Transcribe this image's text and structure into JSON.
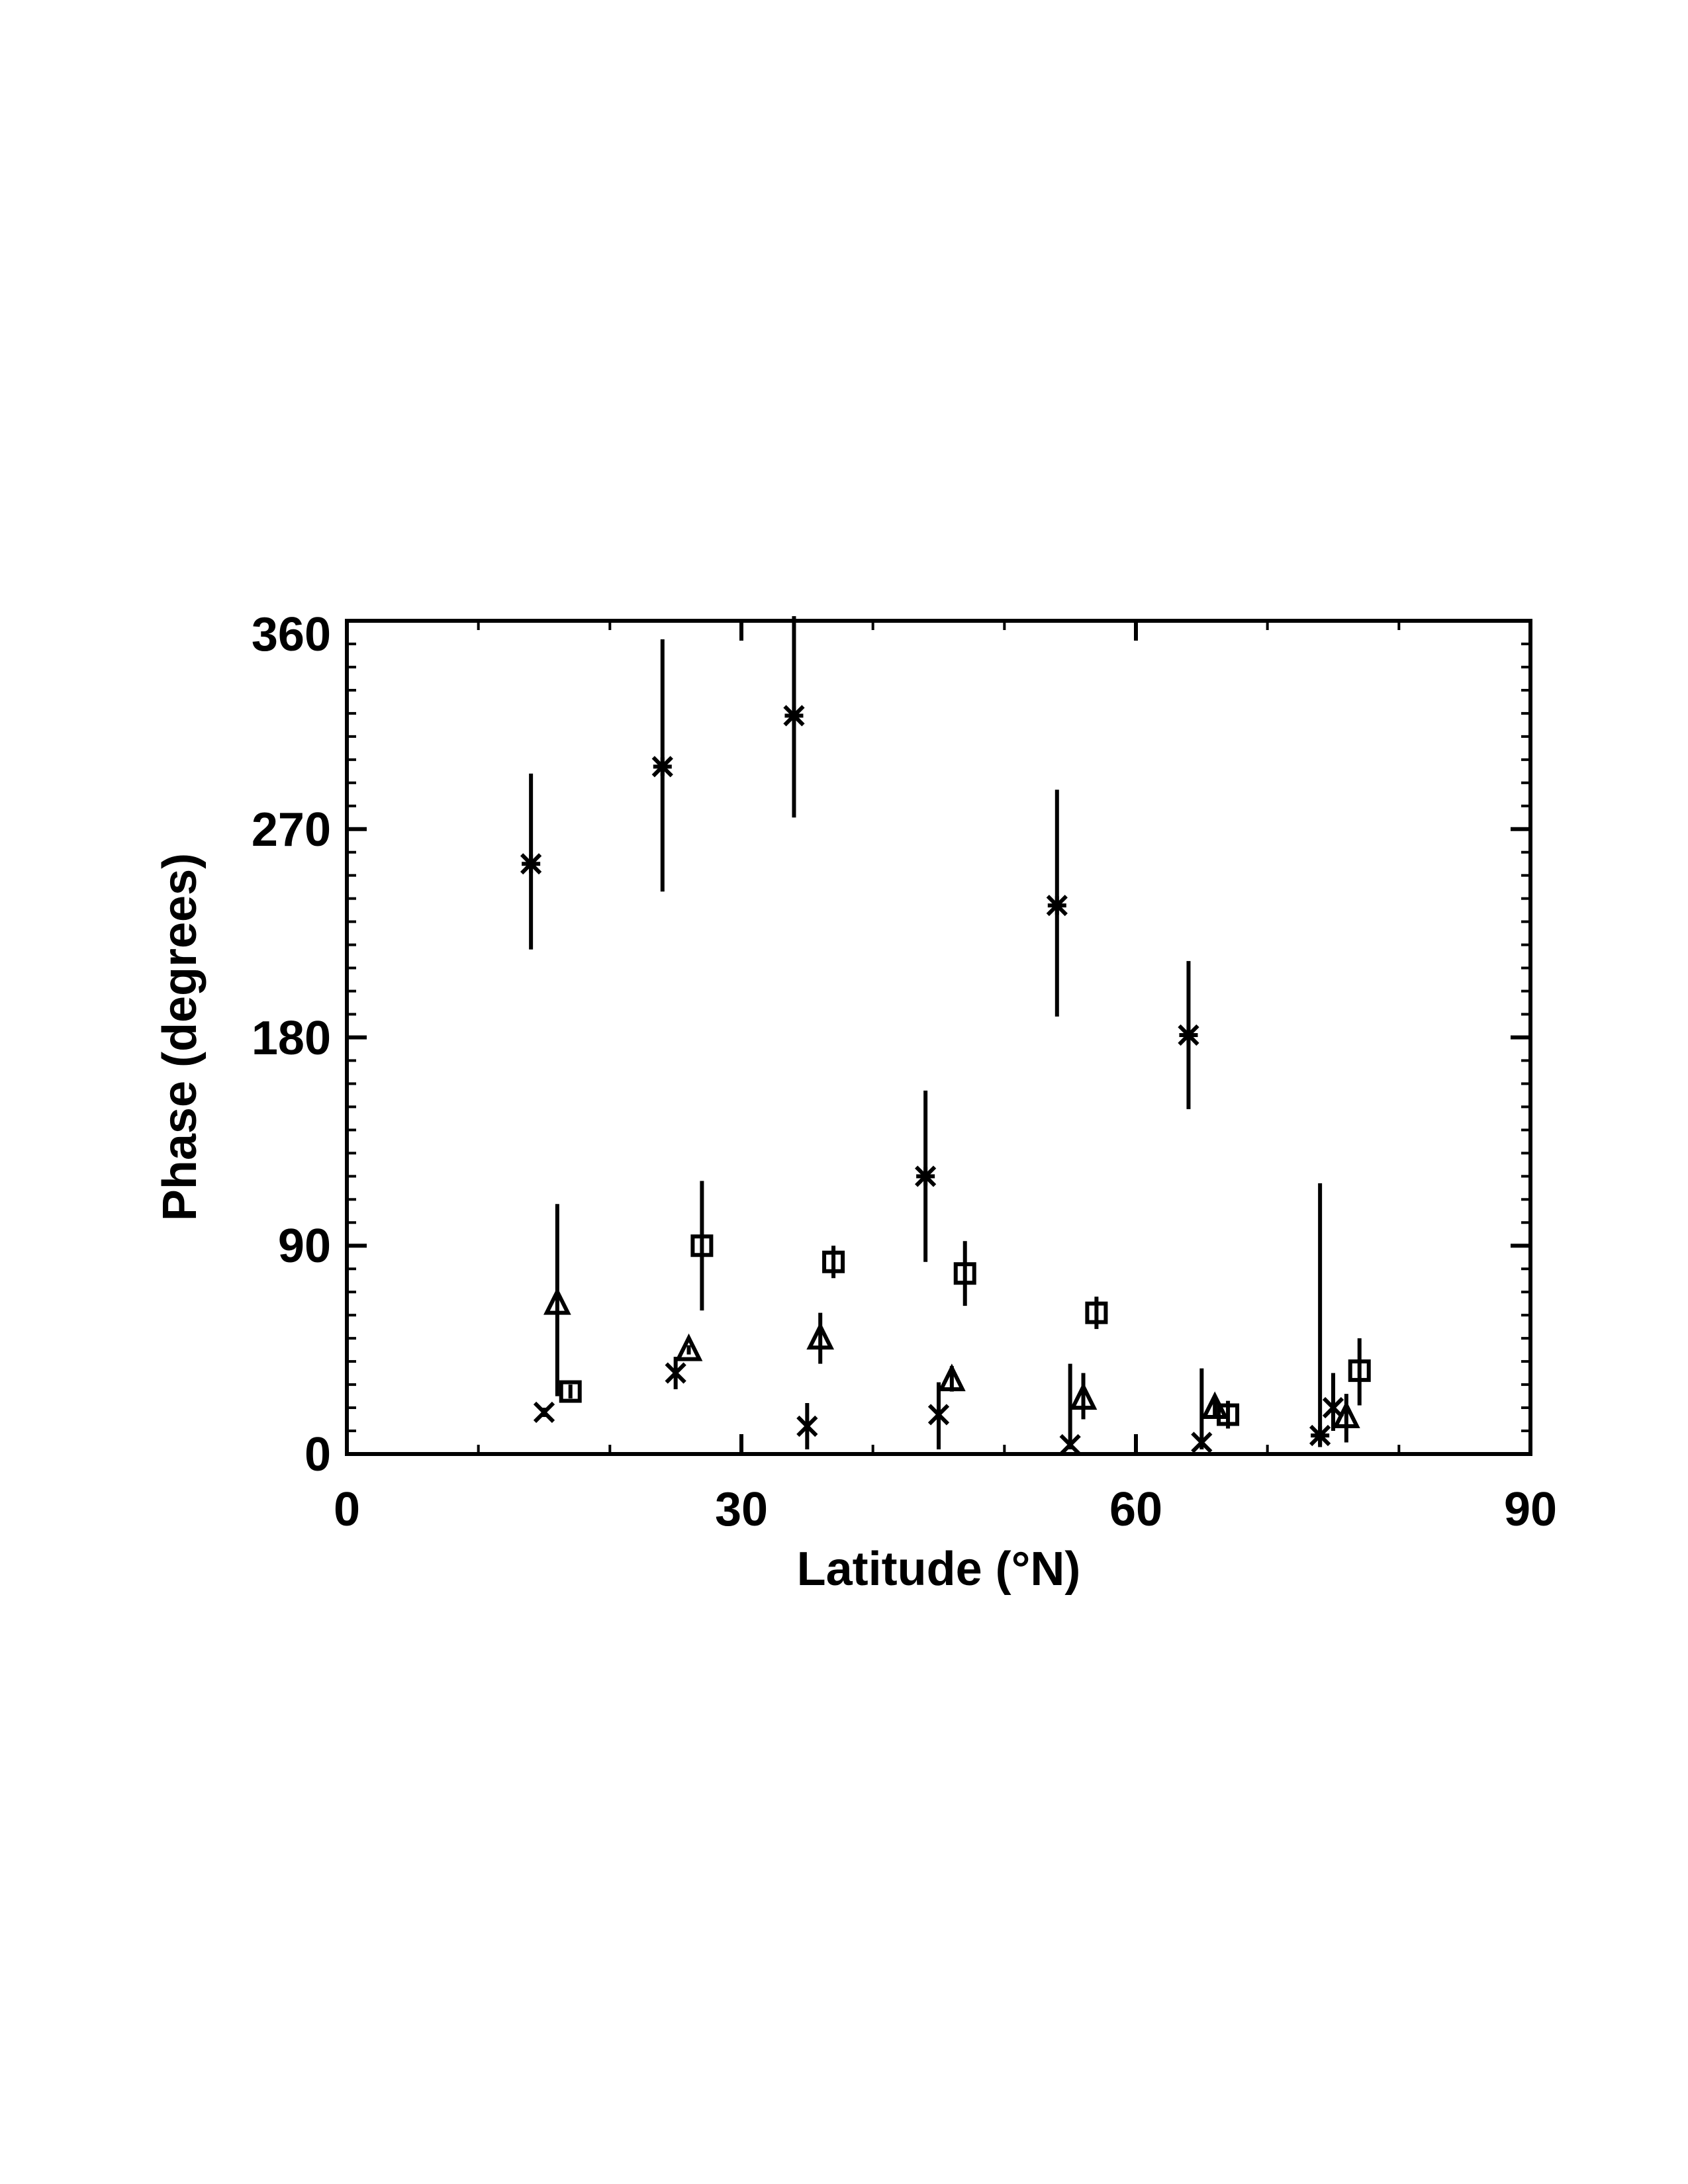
{
  "chart_data": {
    "type": "scatter",
    "xlabel": "Latitude (°N)",
    "ylabel": "Phase (degrees)",
    "xlim": [
      0,
      90
    ],
    "ylim": [
      0,
      360
    ],
    "x_ticks": [
      "0",
      "30",
      "60",
      "90"
    ],
    "y_ticks": [
      "0",
      "90",
      "180",
      "270",
      "360"
    ],
    "grid": false,
    "legend": "none",
    "series": [
      {
        "marker": "asterisk",
        "points": [
          {
            "x": 14,
            "y": 255,
            "ylo": 218,
            "yhi": 294
          },
          {
            "x": 24,
            "y": 297,
            "ylo": 243,
            "yhi": 352
          },
          {
            "x": 34,
            "y": 319,
            "ylo": 275,
            "yhi": 362
          },
          {
            "x": 44,
            "y": 120,
            "ylo": 83,
            "yhi": 157
          },
          {
            "x": 54,
            "y": 237,
            "ylo": 189,
            "yhi": 287
          },
          {
            "x": 64,
            "y": 181,
            "ylo": 149,
            "yhi": 213
          }
        ]
      },
      {
        "marker": "triangle",
        "points": [
          {
            "x": 16,
            "y": 65,
            "ylo": 25,
            "yhi": 108
          },
          {
            "x": 26,
            "y": 45,
            "ylo": 43,
            "yhi": 47
          },
          {
            "x": 36,
            "y": 50,
            "ylo": 39,
            "yhi": 61
          },
          {
            "x": 46,
            "y": 32,
            "ylo": 27,
            "yhi": 38
          },
          {
            "x": 56,
            "y": 24,
            "ylo": 15,
            "yhi": 35
          },
          {
            "x": 66,
            "y": 20,
            "ylo": 16,
            "yhi": 24
          },
          {
            "x": 76,
            "y": 16,
            "ylo": 5,
            "yhi": 26
          }
        ]
      },
      {
        "marker": "square",
        "points": [
          {
            "x": 17,
            "y": 27,
            "ylo": 24,
            "yhi": 30
          },
          {
            "x": 27,
            "y": 90,
            "ylo": 62,
            "yhi": 118
          },
          {
            "x": 37,
            "y": 83,
            "ylo": 76,
            "yhi": 90
          },
          {
            "x": 47,
            "y": 78,
            "ylo": 64,
            "yhi": 92
          },
          {
            "x": 57,
            "y": 61,
            "ylo": 54,
            "yhi": 68
          },
          {
            "x": 67,
            "y": 17,
            "ylo": 11,
            "yhi": 23
          },
          {
            "x": 77,
            "y": 36,
            "ylo": 21,
            "yhi": 50
          }
        ]
      },
      {
        "marker": "x",
        "points": [
          {
            "x": 15,
            "y": 18,
            "ylo": 16,
            "yhi": 20
          },
          {
            "x": 25,
            "y": 35,
            "ylo": 28,
            "yhi": 42
          },
          {
            "x": 35,
            "y": 12,
            "ylo": 2,
            "yhi": 22
          },
          {
            "x": 45,
            "y": 17,
            "ylo": 2,
            "yhi": 31
          },
          {
            "x": 55,
            "y": 4,
            "ylo": 2,
            "yhi": 39
          },
          {
            "x": 65,
            "y": 5,
            "ylo": 2,
            "yhi": 37
          },
          {
            "x": 75,
            "y": 20,
            "ylo": 10,
            "yhi": 35
          }
        ]
      },
      {
        "marker": "asterisk",
        "points": [
          {
            "x": 74,
            "y": 8,
            "ylo": 3,
            "yhi": 117
          }
        ]
      }
    ]
  }
}
